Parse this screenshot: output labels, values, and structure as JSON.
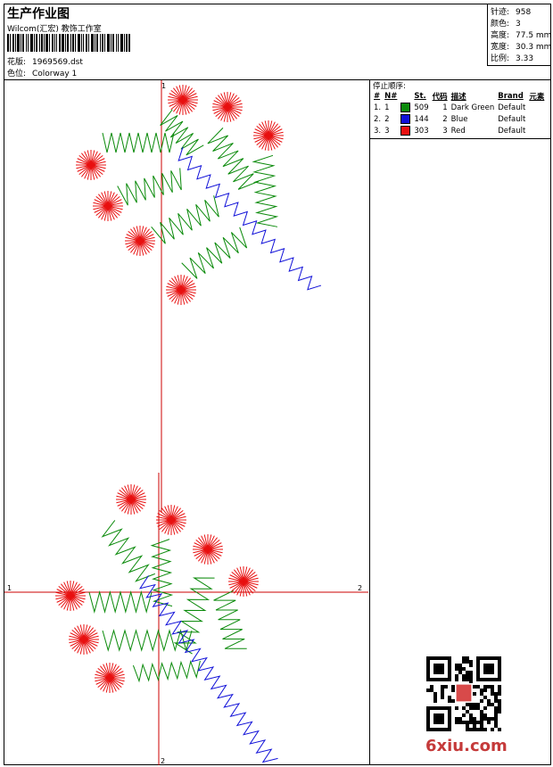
{
  "header": {
    "title": "生产作业图",
    "subtitle": "Wilcom(汇宏) 教饰工作室",
    "design_label": "花版:",
    "design_value": "1969569.dst",
    "colorway_label": "色位:",
    "colorway_value": "Colorway 1"
  },
  "stats": [
    {
      "label": "针迹:",
      "value": "958"
    },
    {
      "label": "颜色:",
      "value": "3"
    },
    {
      "label": "高度:",
      "value": "77.5 mm"
    },
    {
      "label": "宽度:",
      "value": "30.3 mm"
    },
    {
      "label": "比例:",
      "value": "3.33"
    }
  ],
  "panel": {
    "stop_sequence_label": "停止顺序:",
    "columns": [
      "#",
      "N#",
      "St.",
      "代码",
      "描述",
      "Brand",
      "元素"
    ],
    "rows": [
      {
        "num": "1.",
        "n": "1",
        "color": "#0a8a0a",
        "st": "509",
        "code": "1",
        "desc": "Dark Green",
        "brand": "Default"
      },
      {
        "num": "2.",
        "n": "2",
        "color": "#1010d8",
        "st": "144",
        "code": "2",
        "desc": "Blue",
        "brand": "Default"
      },
      {
        "num": "3.",
        "n": "3",
        "color": "#e81010",
        "st": "303",
        "code": "3",
        "desc": "Red",
        "brand": "Default"
      }
    ]
  },
  "drawing": {
    "axis_labels": {
      "top_v": "1",
      "left_h": "1",
      "right_h": "2",
      "bottom_v": "2"
    },
    "colors": {
      "green": "#0a8a0a",
      "blue": "#1010d8",
      "red": "#e81010",
      "axis": "#cc0000"
    }
  },
  "watermark": {
    "site": "6xiu.com",
    "seal_text": "汇宏"
  }
}
